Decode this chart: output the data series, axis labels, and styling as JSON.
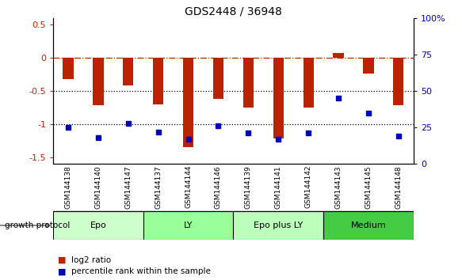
{
  "title": "GDS2448 / 36948",
  "categories": [
    "GSM144138",
    "GSM144140",
    "GSM144147",
    "GSM144137",
    "GSM144144",
    "GSM144146",
    "GSM144139",
    "GSM144141",
    "GSM144142",
    "GSM144143",
    "GSM144145",
    "GSM144148"
  ],
  "log2_ratio": [
    -0.32,
    -0.72,
    -0.42,
    -0.7,
    -1.35,
    -0.62,
    -0.75,
    -1.22,
    -0.75,
    0.08,
    -0.24,
    -0.72
  ],
  "percentile_rank": [
    25,
    18,
    28,
    22,
    17,
    26,
    21,
    17,
    21,
    45,
    35,
    19
  ],
  "groups": [
    {
      "label": "Epo",
      "start": 0,
      "end": 3,
      "color": "#ccffcc"
    },
    {
      "label": "LY",
      "start": 3,
      "end": 6,
      "color": "#99ff99"
    },
    {
      "label": "Epo plus LY",
      "start": 6,
      "end": 9,
      "color": "#bbffbb"
    },
    {
      "label": "Medium",
      "start": 9,
      "end": 12,
      "color": "#44cc44"
    }
  ],
  "bar_color": "#bb2200",
  "dot_color": "#0000bb",
  "ylim_left": [
    -1.6,
    0.6
  ],
  "ylim_right": [
    0,
    100
  ],
  "left_ticks": [
    -1.5,
    -1.0,
    -0.5,
    0.0,
    0.5
  ],
  "left_tick_labels": [
    "-1.5",
    "-1",
    "-0.5",
    "0",
    "0.5"
  ],
  "right_ticks": [
    0,
    25,
    50,
    75,
    100
  ],
  "right_tick_labels": [
    "0",
    "25",
    "50",
    "75",
    "100%"
  ],
  "legend_items": [
    {
      "label": "log2 ratio",
      "color": "#bb2200"
    },
    {
      "label": "percentile rank within the sample",
      "color": "#0000bb"
    }
  ],
  "growth_protocol_label": "growth protocol",
  "bar_width": 0.35,
  "xtick_bg_color": "#cccccc",
  "xtick_divider_color": "#ffffff"
}
